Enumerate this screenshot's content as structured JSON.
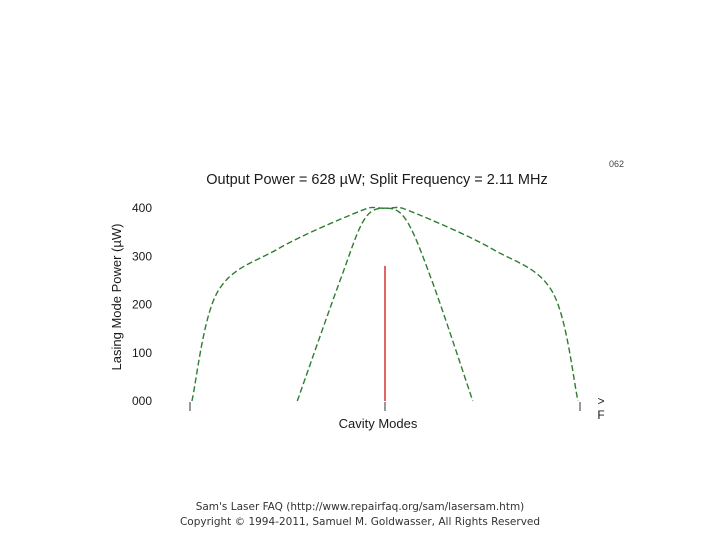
{
  "figure_number": "062",
  "chart_data": {
    "type": "line",
    "title": "Output Power = 628 µW; Split Frequency = 2.11 MHz",
    "xlabel": "Cavity Modes",
    "ylabel": "Lasing Mode Power (µW)",
    "yticks": [
      "000",
      "100",
      "200",
      "300",
      "400"
    ],
    "ylim": [
      0,
      400
    ],
    "xlim": [
      -1,
      1
    ],
    "grid": false,
    "frequency_axis_label": "F",
    "frequency_axis_arrow": ">",
    "series": [
      {
        "color": "#2e7d32",
        "style": "dashed",
        "x": [
          -0.99,
          -0.86,
          -0.55,
          -0.15,
          -0.03,
          0.1,
          0.24,
          0.45
        ],
        "values": [
          0,
          225,
          315,
          390,
          400,
          380,
          250,
          0
        ]
      },
      {
        "color": "#2e7d32",
        "style": "dashed",
        "x": [
          -0.45,
          -0.23,
          -0.1,
          0.03,
          0.15,
          0.55,
          0.86,
          0.99
        ],
        "values": [
          0,
          250,
          380,
          400,
          390,
          315,
          225,
          0
        ]
      }
    ],
    "markers": [
      {
        "x": 0.0,
        "value": 280,
        "color": "#cc0000"
      }
    ]
  },
  "footer": {
    "line1": "Sam's Laser FAQ (http://www.repairfaq.org/sam/lasersam.htm)",
    "line2": "Copyright © 1994-2011, Samuel M. Goldwasser, All Rights Reserved"
  }
}
